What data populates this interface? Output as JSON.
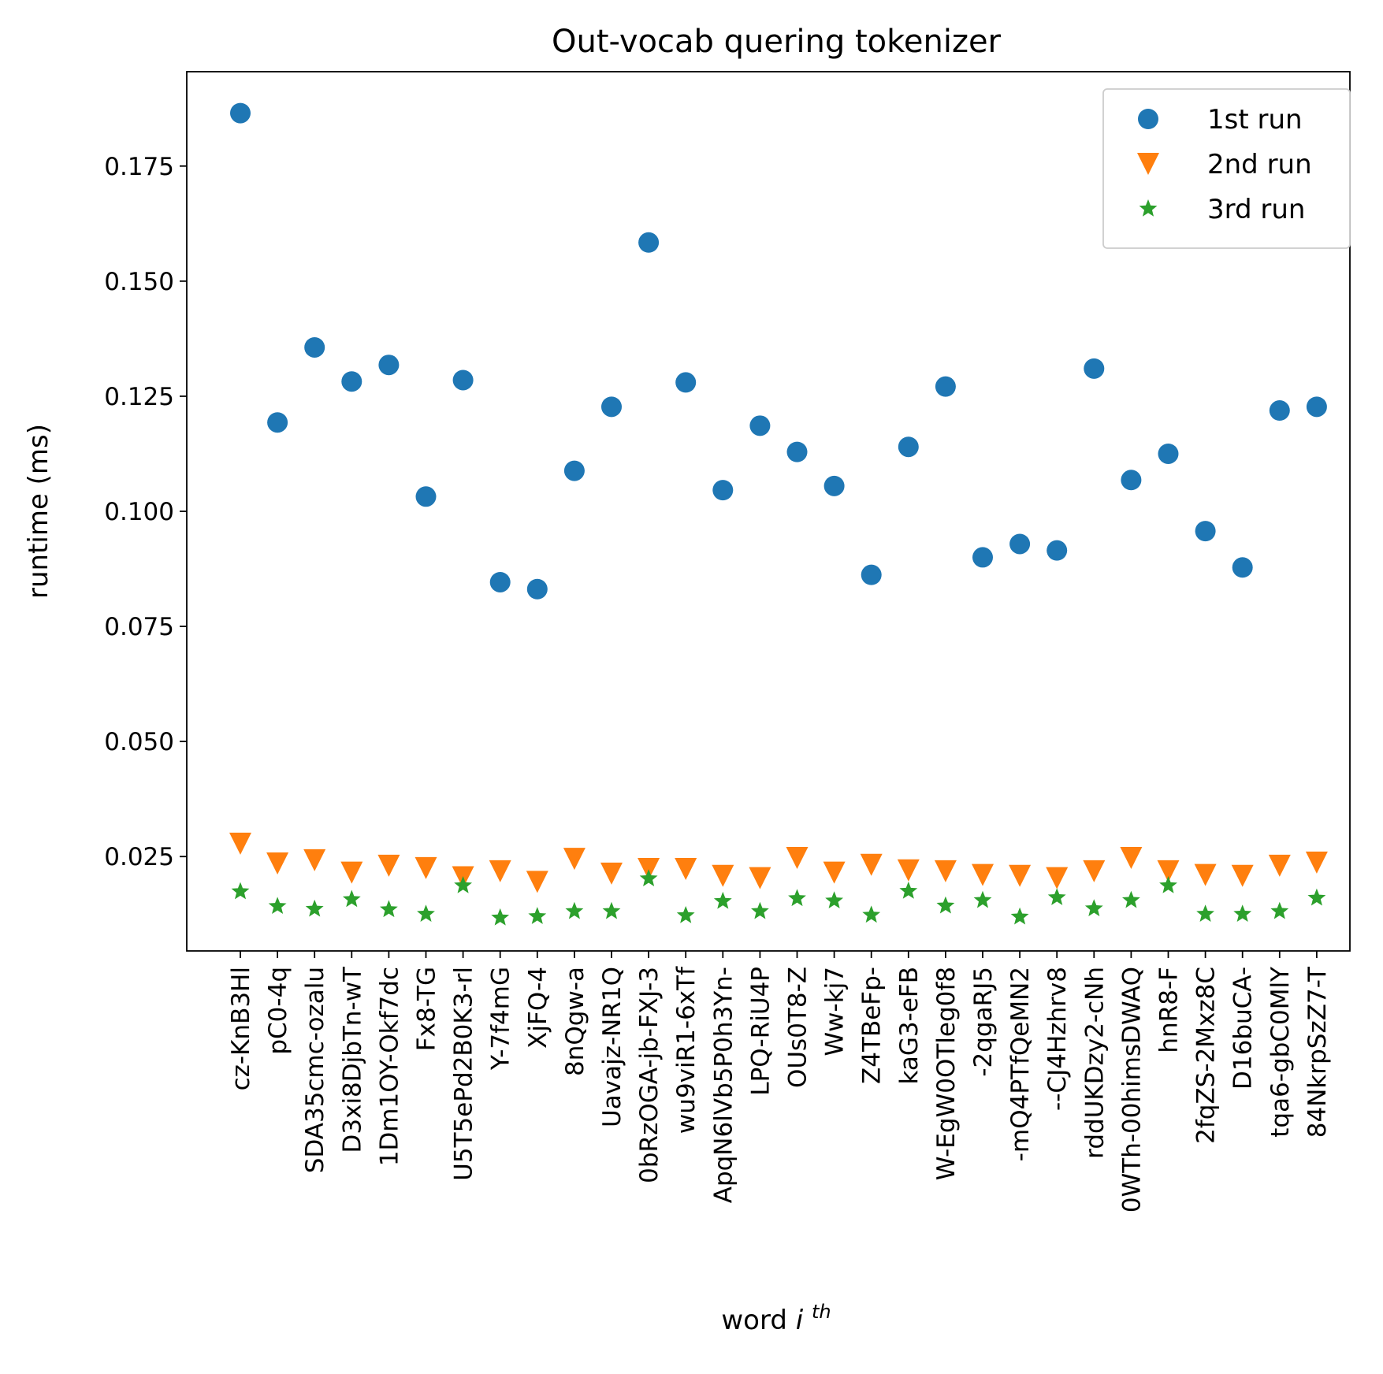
{
  "chart_data": {
    "type": "scatter",
    "title": "Out-vocab quering tokenizer",
    "xlabel": "word",
    "xlabel_sup": "i",
    "xlabel_sup2": "th",
    "ylabel": "runtime (ms)",
    "ylim": [
      0.0045,
      0.1955
    ],
    "yticks": [
      0.025,
      0.05,
      0.075,
      0.1,
      0.125,
      0.15,
      0.175
    ],
    "ytick_labels": [
      "0.025",
      "0.050",
      "0.075",
      "0.100",
      "0.125",
      "0.150",
      "0.175"
    ],
    "grid": false,
    "legend_position": "top-right",
    "categories": [
      "cz-KnB3Hl",
      "pC0-4q",
      "SDA35cmc-ozalu",
      "D3xi8DjbTn-wT",
      "1Dm1OY-Okf7dc",
      "Fx8-TG",
      "U5T5ePd2B0K3-rl",
      "Y-7f4mG",
      "XjFQ-4",
      "8nQgw-a",
      "Uavajz-NR1Q",
      "0bRzOGA-jb-FXJ-3",
      "wu9viR1-6xTf",
      "ApqN6lVb5P0h3Yn-",
      "LPQ-RiU4P",
      "OUs0T8-Z",
      "Ww-kj7",
      "Z4TBeFp-",
      "kaG3-eFB",
      "W-EgW0OTleg0f8",
      "-2qgaRJ5",
      "-mQ4PTfQeMN2",
      "--CJ4Hzhrv8",
      "rddUKDzy2-cNh",
      "0WTh-00himsDWAQ",
      "hnR8-F",
      "2fqZS-2Mxz8C",
      "D16buCA-",
      "tqa6-gbC0MlY",
      "84NkrpSzZ7-T"
    ],
    "series": [
      {
        "name": "1st run",
        "marker": "circle",
        "color": "#1f77b4",
        "values": [
          0.1865,
          0.1193,
          0.1356,
          0.1282,
          0.1318,
          0.1032,
          0.1285,
          0.0846,
          0.0831,
          0.1088,
          0.1227,
          0.1584,
          0.128,
          0.1046,
          0.1186,
          0.1129,
          0.1055,
          0.0862,
          0.114,
          0.1271,
          0.09,
          0.0929,
          0.0915,
          0.131,
          0.1068,
          0.1125,
          0.0957,
          0.0878,
          0.1219,
          0.1227
        ]
      },
      {
        "name": "2nd run",
        "marker": "triangle-down",
        "color": "#ff7f0e",
        "values": [
          0.0278,
          0.0235,
          0.0242,
          0.0215,
          0.023,
          0.0225,
          0.0205,
          0.0218,
          0.0195,
          0.0245,
          0.0213,
          0.0223,
          0.0223,
          0.0208,
          0.0203,
          0.0247,
          0.0215,
          0.0232,
          0.022,
          0.0218,
          0.021,
          0.0208,
          0.0203,
          0.0218,
          0.0247,
          0.0218,
          0.021,
          0.0208,
          0.023,
          0.0237
        ]
      },
      {
        "name": "3rd run",
        "marker": "star",
        "color": "#2ca02c",
        "values": [
          0.0174,
          0.0142,
          0.0136,
          0.0157,
          0.0135,
          0.0125,
          0.0187,
          0.0117,
          0.012,
          0.0131,
          0.0131,
          0.0202,
          0.0122,
          0.0153,
          0.0131,
          0.0159,
          0.0154,
          0.0123,
          0.0175,
          0.0143,
          0.0155,
          0.0119,
          0.0161,
          0.0137,
          0.0155,
          0.0187,
          0.0125,
          0.0125,
          0.0131,
          0.016
        ]
      }
    ]
  }
}
